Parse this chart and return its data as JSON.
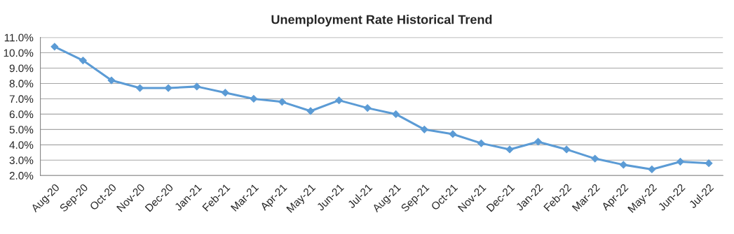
{
  "chart_data": {
    "type": "line",
    "title": "Unemployment Rate Historical Trend",
    "categories": [
      "Aug-20",
      "Sep-20",
      "Oct-20",
      "Nov-20",
      "Dec-20",
      "Jan-21",
      "Feb-21",
      "Mar-21",
      "Apr-21",
      "May-21",
      "Jun-21",
      "Jul-21",
      "Aug-21",
      "Sep-21",
      "Oct-21",
      "Nov-21",
      "Dec-21",
      "Jan-22",
      "Feb-22",
      "Mar-22",
      "Apr-22",
      "May-22",
      "Jun-22",
      "Jul-22"
    ],
    "series": [
      {
        "color": "#5b9bd5",
        "values": [
          10.4,
          9.5,
          8.2,
          7.7,
          7.7,
          7.8,
          7.4,
          7.0,
          6.8,
          6.2,
          6.9,
          6.4,
          6.0,
          5.0,
          4.7,
          4.1,
          3.7,
          4.2,
          3.7,
          3.1,
          2.7,
          2.4,
          2.9,
          2.8
        ]
      }
    ],
    "ylim": [
      2,
      11
    ],
    "yticks": [
      {
        "value": 2,
        "label": "2.0%"
      },
      {
        "value": 3,
        "label": "3.0%"
      },
      {
        "value": 4,
        "label": "4.0%"
      },
      {
        "value": 5,
        "label": "5.0%"
      },
      {
        "value": 6,
        "label": "6.0%"
      },
      {
        "value": 7,
        "label": "7.0%"
      },
      {
        "value": 8,
        "label": "8.0%"
      },
      {
        "value": 9,
        "label": "9.0%"
      },
      {
        "value": 10,
        "label": "10.0%"
      },
      {
        "value": 11,
        "label": "11.0%"
      }
    ],
    "grid": "y",
    "marker": "diamond",
    "line_style": "solid"
  }
}
